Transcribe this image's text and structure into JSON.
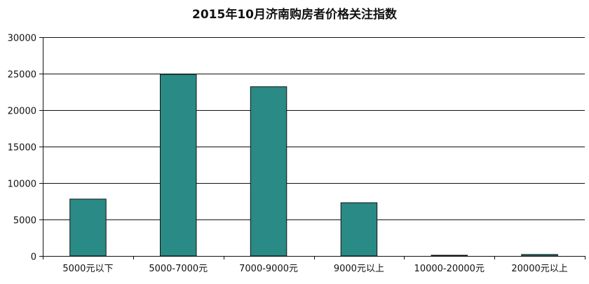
{
  "chart_data": {
    "type": "bar",
    "title": "2015年10月济南购房者价格关注指数",
    "xlabel": "",
    "ylabel": "",
    "categories": [
      "5000元以下",
      "5000-7000元",
      "7000-9000元",
      "9000元以上",
      "10000-20000元",
      "20000元以上"
    ],
    "values": [
      7800,
      24900,
      23200,
      7300,
      80,
      200
    ],
    "ylim": [
      0,
      30000
    ],
    "yticks": [
      0,
      5000,
      10000,
      15000,
      20000,
      25000,
      30000
    ],
    "grid": true,
    "bar_color": "#2a8a85",
    "bar_stroke": "#111111"
  }
}
